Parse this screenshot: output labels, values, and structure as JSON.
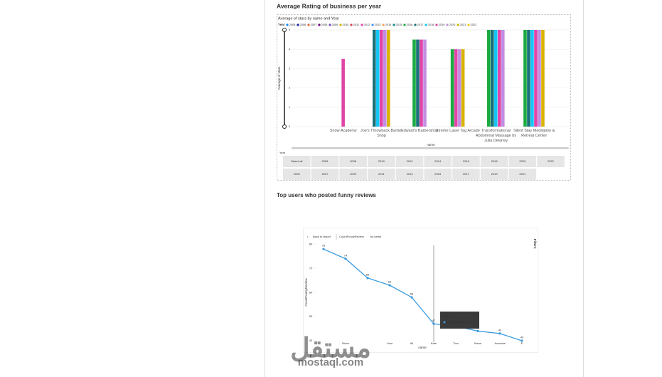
{
  "page": {
    "watermark_ar": "مستقل",
    "watermark": "mostaql.com"
  },
  "chart_data": [
    {
      "type": "bar",
      "heading": "Average Rating of business per year",
      "title": "Average of stars by name and Year",
      "legend_title": "Year",
      "xlabel": "name",
      "ylabel": "Average of stars",
      "categories": [
        "Snow Academy",
        "Joe's Throwback Barber Shop",
        "Edward's Barbershop",
        "Xtreme Laser Tag Arcade",
        "Transformational Abdominal Massage by Julia Delaney",
        "Silent Stay Meditation & Retreat Center"
      ],
      "series": [
        {
          "name": "2005",
          "color": "#118dff",
          "values": [
            null,
            null,
            null,
            null,
            null,
            null
          ]
        },
        {
          "name": "2006",
          "color": "#12239e",
          "values": [
            null,
            null,
            null,
            null,
            null,
            null
          ]
        },
        {
          "name": "2007",
          "color": "#e66c37",
          "values": [
            null,
            null,
            null,
            null,
            null,
            null
          ]
        },
        {
          "name": "2008",
          "color": "#6b007b",
          "values": [
            null,
            null,
            null,
            null,
            null,
            null
          ]
        },
        {
          "name": "2009",
          "color": "#744ec2",
          "values": [
            null,
            null,
            null,
            null,
            null,
            null
          ]
        },
        {
          "name": "2010",
          "color": "#d9b300",
          "values": [
            null,
            null,
            null,
            null,
            null,
            null
          ]
        },
        {
          "name": "2011",
          "color": "#d64550",
          "values": [
            null,
            null,
            null,
            null,
            null,
            null
          ]
        },
        {
          "name": "2012",
          "color": "#e044a7",
          "values": [
            null,
            null,
            null,
            null,
            null,
            null
          ]
        },
        {
          "name": "2013",
          "color": "#4092ff",
          "values": [
            null,
            null,
            null,
            null,
            null,
            null
          ]
        },
        {
          "name": "2014",
          "color": "#ffa058",
          "values": [
            null,
            null,
            null,
            null,
            null,
            null
          ]
        },
        {
          "name": "2015",
          "color": "#0e8c8c",
          "values": [
            null,
            null,
            null,
            null,
            null,
            null
          ]
        },
        {
          "name": "2016",
          "color": "#1aab40",
          "values": [
            null,
            null,
            4.5,
            4,
            5,
            5
          ]
        },
        {
          "name": "2017",
          "color": "#197278",
          "values": [
            null,
            5,
            4.5,
            null,
            5,
            5
          ]
        },
        {
          "name": "2018",
          "color": "#15c6f4",
          "values": [
            null,
            5,
            null,
            null,
            5,
            5
          ]
        },
        {
          "name": "2019",
          "color": "#e044a7",
          "values": [
            3.5,
            5,
            4.5,
            4,
            5,
            5
          ]
        },
        {
          "name": "2020",
          "color": "#c38de3",
          "values": [
            null,
            5,
            4.5,
            4,
            5,
            5
          ]
        },
        {
          "name": "2021",
          "color": "#d9b300",
          "values": [
            null,
            5,
            null,
            4,
            null,
            5
          ]
        },
        {
          "name": "2022",
          "color": "#f2c80f",
          "values": [
            null,
            null,
            null,
            null,
            null,
            null
          ]
        }
      ],
      "ylim": [
        0,
        5
      ],
      "yticks": [
        0,
        1,
        2,
        3,
        4,
        5
      ],
      "slicer": {
        "label": "Year",
        "rows": [
          [
            "Select all",
            "2006",
            "2008",
            "2010",
            "2012",
            "2014",
            "2016",
            "2018",
            "2020",
            "2022"
          ],
          [
            "2005",
            "2007",
            "2009",
            "2011",
            "2013",
            "2015",
            "2017",
            "2019",
            "2021"
          ]
        ]
      }
    },
    {
      "type": "line",
      "heading": "Top users who posted funny reviews",
      "back": "Back to report",
      "by_label": "by name",
      "filters": "Filters",
      "xlabel": "name",
      "ylabel": "CountFunnyReview",
      "categories": [
        null,
        "Steve",
        null,
        "John",
        "Ali",
        "Kate",
        "Tom",
        "Kiana",
        "Amanda",
        "E"
      ],
      "values": [
        78,
        74,
        66,
        63,
        58,
        47,
        46,
        44,
        43,
        40
      ],
      "color": "#3a9be0",
      "ylim": [
        40,
        81
      ],
      "yticks": [
        40,
        50,
        60,
        70,
        80
      ],
      "tooltip_index": 5
    }
  ]
}
